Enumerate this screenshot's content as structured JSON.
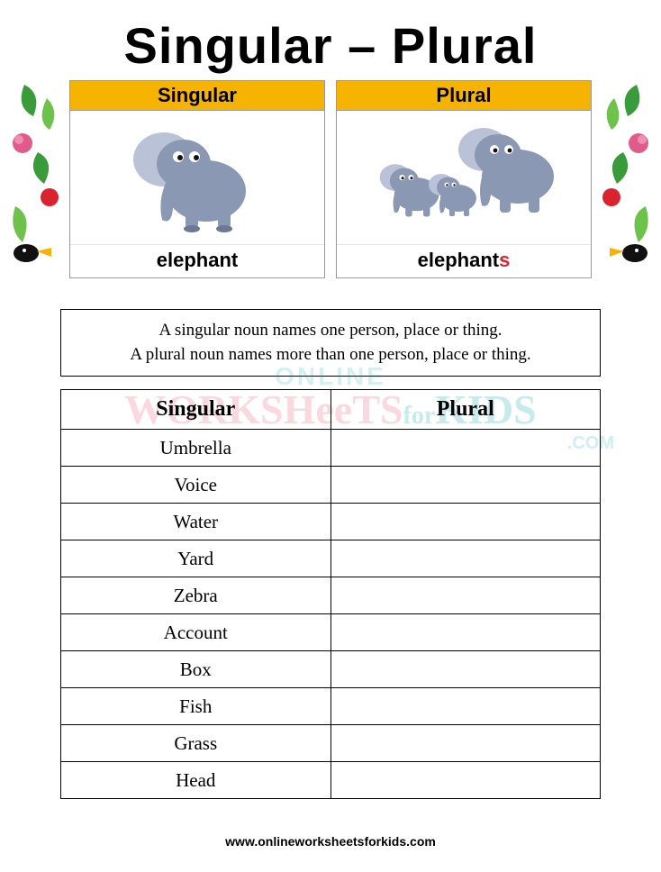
{
  "title": "Singular – Plural",
  "example": {
    "header_bg": "#f7b301",
    "cards": [
      {
        "header": "Singular",
        "caption_base": "elephant",
        "caption_suffix": ""
      },
      {
        "header": "Plural",
        "caption_base": "elephant",
        "caption_suffix": "s"
      }
    ]
  },
  "definition": {
    "line1": "A singular noun names one person, place or thing.",
    "line2": "A plural noun names more than one person, place or thing."
  },
  "table": {
    "columns": [
      "Singular",
      "Plural"
    ],
    "rows": [
      [
        "Umbrella",
        ""
      ],
      [
        "Voice",
        ""
      ],
      [
        "Water",
        ""
      ],
      [
        "Yard",
        ""
      ],
      [
        "Zebra",
        ""
      ],
      [
        "Account",
        ""
      ],
      [
        "Box",
        ""
      ],
      [
        "Fish",
        ""
      ],
      [
        "Grass",
        ""
      ],
      [
        "Head",
        ""
      ]
    ]
  },
  "watermark": {
    "line1": "ONLINE",
    "line2a": "WORKSHeeTS",
    "line2b": "for",
    "line2c": "KIDS",
    "line3": ".COM"
  },
  "footer": "www.onlineworksheetsforkids.com",
  "colors": {
    "elephant_body": "#8a98b3",
    "elephant_ear": "#b9c2d6",
    "elephant_dark": "#6c7894",
    "foliage_green": "#3a9b3a",
    "foliage_green2": "#6cc24a",
    "flower_pink": "#e05a8a",
    "flower_red": "#d9232e",
    "bird_black": "#111111",
    "bird_beak": "#f7b301"
  }
}
